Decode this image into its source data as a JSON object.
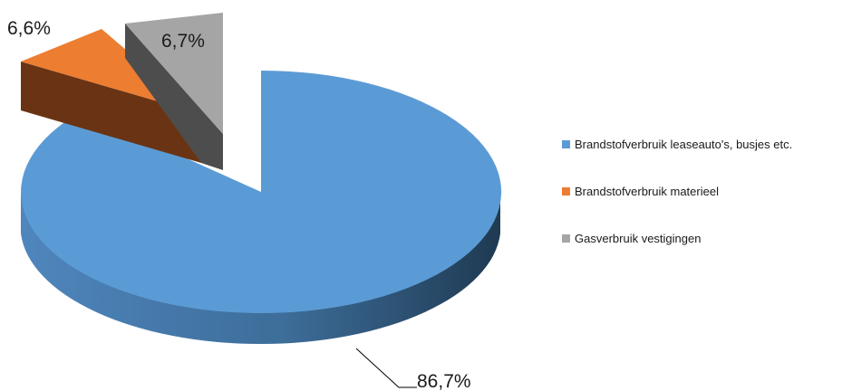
{
  "chart_data": {
    "type": "pie",
    "title": "",
    "slices": [
      {
        "label": "Brandstofverbruik leaseauto's, busjes etc.",
        "value": 86.7,
        "display": "86,7%",
        "color": "#5b9bd5"
      },
      {
        "label": "Brandstofverbruik materieel",
        "value": 6.6,
        "display": "6,6%",
        "color": "#ed7d31"
      },
      {
        "label": "Gasverbruik vestigingen",
        "value": 6.7,
        "display": "6,7%",
        "color": "#a5a5a5"
      }
    ],
    "legend_position": "right",
    "style": "3d-exploded"
  }
}
